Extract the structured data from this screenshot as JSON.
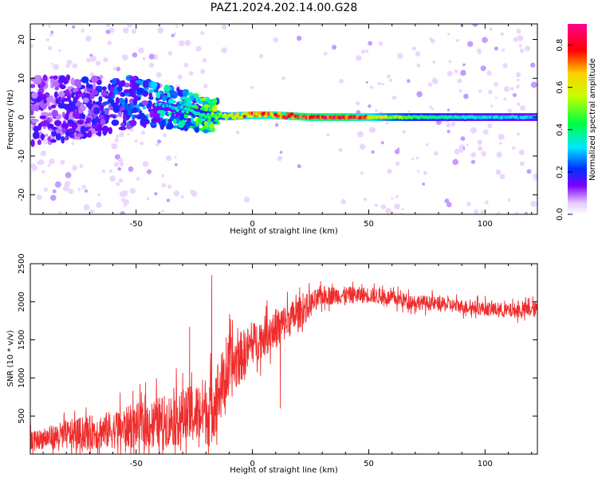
{
  "page": {
    "title": "PAZ1.2024.202.14.00.G28"
  },
  "chart_data": [
    {
      "type": "heatmap",
      "title": "",
      "xlabel": "Height of straight line (km)",
      "ylabel": "Frequency (Hz)",
      "xlim": [
        -95.5,
        122.5
      ],
      "ylim": [
        -25,
        24
      ],
      "xticks": [
        -50,
        0,
        50,
        100
      ],
      "yticks": [
        -20,
        -10,
        0,
        10,
        20
      ],
      "colorbar": {
        "label": "Normalized spectral amplitude",
        "range": [
          0.0,
          0.9
        ],
        "ticks": [
          0.0,
          0.2,
          0.4,
          0.6,
          0.8
        ],
        "colormap": [
          "#ffffff",
          "#e6c8ff",
          "#7a00ff",
          "#0030ff",
          "#00e6ff",
          "#00ff40",
          "#c8ff00",
          "#ffd000",
          "#ff0000",
          "#ff0090"
        ]
      },
      "ridge": [
        {
          "x": -90,
          "f": 2.0,
          "amp": 0.15
        },
        {
          "x": -70,
          "f": 2.5,
          "amp": 0.18
        },
        {
          "x": -50,
          "f": 4.0,
          "amp": 0.25
        },
        {
          "x": -40,
          "f": 3.0,
          "amp": 0.3
        },
        {
          "x": -30,
          "f": 2.0,
          "amp": 0.35
        },
        {
          "x": -20,
          "f": 0.5,
          "amp": 0.45
        },
        {
          "x": -10,
          "f": 0.2,
          "amp": 0.6
        },
        {
          "x": 0,
          "f": 0.5,
          "amp": 0.75
        },
        {
          "x": 10,
          "f": 0.5,
          "amp": 0.8
        },
        {
          "x": 25,
          "f": 0.0,
          "amp": 0.88
        },
        {
          "x": 40,
          "f": 0.0,
          "amp": 0.9
        },
        {
          "x": 60,
          "f": 0.0,
          "amp": 0.55
        },
        {
          "x": 80,
          "f": 0.0,
          "amp": 0.4
        },
        {
          "x": 100,
          "f": 0.0,
          "amp": 0.35
        },
        {
          "x": 122,
          "f": 0.0,
          "amp": 0.3
        }
      ],
      "colors": {
        "axis": "#000000"
      }
    },
    {
      "type": "line",
      "title": "",
      "xlabel": "Height of straight line (km)",
      "ylabel": "SNR (10 * v/v)",
      "xlim": [
        -95.5,
        122.5
      ],
      "ylim": [
        0,
        2500
      ],
      "xticks": [
        -50,
        0,
        50,
        100
      ],
      "yticks": [
        500,
        1000,
        1500,
        2000,
        2500
      ],
      "series": [
        {
          "color": "#ef2c2c",
          "envelope": [
            {
              "x": -95,
              "mean": 180,
              "spread": 160
            },
            {
              "x": -80,
              "mean": 250,
              "spread": 280
            },
            {
              "x": -60,
              "mean": 320,
              "spread": 360
            },
            {
              "x": -40,
              "mean": 420,
              "spread": 480
            },
            {
              "x": -25,
              "mean": 520,
              "spread": 560
            },
            {
              "x": -18,
              "mean": 600,
              "spread": 700
            },
            {
              "x": -10,
              "mean": 1100,
              "spread": 600
            },
            {
              "x": 0,
              "mean": 1450,
              "spread": 380
            },
            {
              "x": 10,
              "mean": 1650,
              "spread": 380
            },
            {
              "x": 20,
              "mean": 1850,
              "spread": 300
            },
            {
              "x": 30,
              "mean": 2080,
              "spread": 180
            },
            {
              "x": 50,
              "mean": 2090,
              "spread": 150
            },
            {
              "x": 70,
              "mean": 2000,
              "spread": 140
            },
            {
              "x": 90,
              "mean": 1940,
              "spread": 130
            },
            {
              "x": 110,
              "mean": 1880,
              "spread": 140
            },
            {
              "x": 122,
              "mean": 1900,
              "spread": 150
            }
          ],
          "spikes": [
            {
              "x": -17.5,
              "y": 2350
            },
            {
              "x": -18.5,
              "y": 100
            },
            {
              "x": -27,
              "y": 1670
            },
            {
              "x": 12,
              "y": 600
            }
          ]
        }
      ],
      "colors": {
        "axis": "#000000"
      }
    }
  ]
}
